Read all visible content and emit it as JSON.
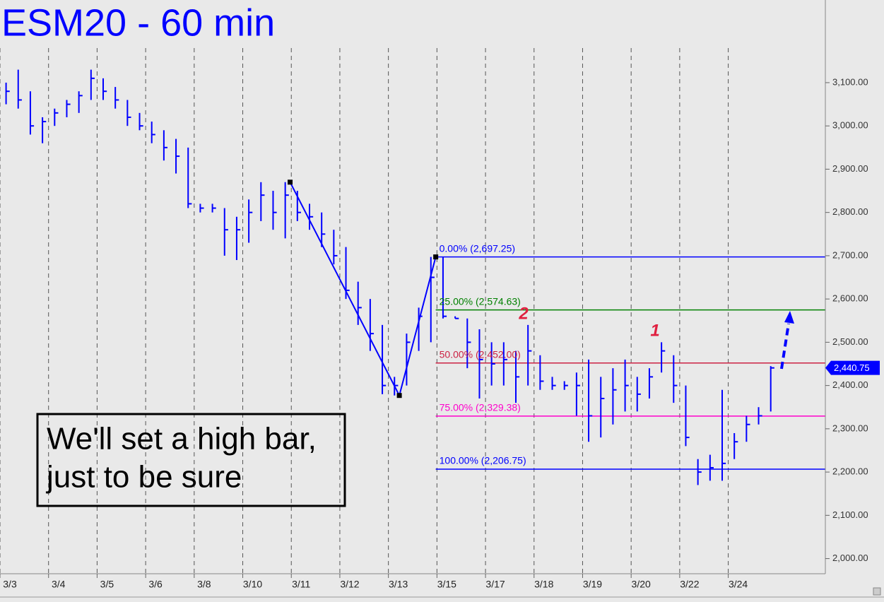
{
  "chart_data": {
    "type": "ohlc",
    "title": "ESM20 - 60 min",
    "color": "#0000ff",
    "high": [
      3100,
      3130,
      3080,
      3020,
      3040,
      3060,
      3080,
      3130,
      3110,
      3090,
      3060,
      3030,
      3010,
      2990,
      2970,
      2950,
      2820,
      2820,
      2810,
      2790,
      2830,
      2870,
      2850,
      2870,
      2850,
      2820,
      2800,
      2760,
      2720,
      2640,
      2600,
      2540,
      2420,
      2520,
      2580,
      2697.25,
      2697.25,
      2560,
      2555,
      2530,
      2500,
      2500,
      2480,
      2540,
      2470,
      2420,
      2410,
      2430,
      2460,
      2420,
      2440,
      2460,
      2420,
      2440,
      2500,
      2470,
      2400,
      2230,
      2240,
      2390,
      2290,
      2330,
      2350,
      2445
    ],
    "low": [
      3050,
      3040,
      2980,
      2960,
      3000,
      3020,
      3030,
      3060,
      3060,
      3040,
      3000,
      2990,
      2960,
      2920,
      2890,
      2810,
      2800,
      2800,
      2700,
      2690,
      2730,
      2780,
      2760,
      2740,
      2780,
      2760,
      2720,
      2680,
      2600,
      2540,
      2480,
      2380,
      2377,
      2400,
      2480,
      2500,
      2555,
      2555,
      2440,
      2370,
      2400,
      2400,
      2360,
      2400,
      2390,
      2390,
      2390,
      2330,
      2270,
      2280,
      2310,
      2340,
      2340,
      2370,
      2430,
      2360,
      2260,
      2170,
      2180,
      2180,
      2230,
      2270,
      2310,
      2340
    ],
    "close": [
      3080,
      3060,
      3000,
      3010,
      3030,
      3050,
      3070,
      3110,
      3080,
      3060,
      3020,
      3000,
      2980,
      2950,
      2930,
      2820,
      2810,
      2810,
      2760,
      2760,
      2800,
      2840,
      2800,
      2840,
      2800,
      2790,
      2750,
      2700,
      2620,
      2580,
      2520,
      2400,
      2400,
      2500,
      2560,
      2650,
      2560,
      2555,
      2500,
      2460,
      2450,
      2460,
      2420,
      2480,
      2410,
      2400,
      2400,
      2400,
      2330,
      2370,
      2390,
      2400,
      2380,
      2420,
      2480,
      2400,
      2280,
      2200,
      2210,
      2220,
      2270,
      2310,
      2330,
      2440.75
    ],
    "xlim": [
      0,
      68
    ],
    "xticks": [
      {
        "value": 0,
        "label": "3/3"
      },
      {
        "value": 4,
        "label": "3/4"
      },
      {
        "value": 8,
        "label": "3/5"
      },
      {
        "value": 12,
        "label": "3/6"
      },
      {
        "value": 16,
        "label": "3/8"
      },
      {
        "value": 20,
        "label": "3/10"
      },
      {
        "value": 24,
        "label": "3/11"
      },
      {
        "value": 28,
        "label": "3/12"
      },
      {
        "value": 32,
        "label": "3/13"
      },
      {
        "value": 36,
        "label": "3/15"
      },
      {
        "value": 40,
        "label": "3/17"
      },
      {
        "value": 44,
        "label": "3/18"
      },
      {
        "value": 48,
        "label": "3/19"
      },
      {
        "value": 52,
        "label": "3/20"
      },
      {
        "value": 56,
        "label": "3/22"
      },
      {
        "value": 60,
        "label": "3/24"
      }
    ],
    "ylim": [
      1965,
      3291
    ],
    "yticks": [
      {
        "value": 2000,
        "label": "2,000.00"
      },
      {
        "value": 2100,
        "label": "2,100.00"
      },
      {
        "value": 2200,
        "label": "2,200.00"
      },
      {
        "value": 2300,
        "label": "2,300.00"
      },
      {
        "value": 2400,
        "label": "2,400.00"
      },
      {
        "value": 2500,
        "label": "2,500.00"
      },
      {
        "value": 2600,
        "label": "2,600.00"
      },
      {
        "value": 2700,
        "label": "2,700.00"
      },
      {
        "value": 2800,
        "label": "2,800.00"
      },
      {
        "value": 2900,
        "label": "2,900.00"
      },
      {
        "value": 3000,
        "label": "3,000.00"
      },
      {
        "value": 3100,
        "label": "3,100.00"
      }
    ],
    "pattern": {
      "x": [
        23.9,
        32.9,
        35.9
      ],
      "values": [
        2870,
        2377,
        2697.25
      ]
    },
    "fib_levels": [
      {
        "value": 2697.25,
        "label": "0.00% (2,697.25)",
        "color": "#0000ff"
      },
      {
        "value": 2574.63,
        "label": "25.00% (2,574.63)",
        "color": "#008000"
      },
      {
        "value": 2452.0,
        "label": "50.00% (2,452.00)",
        "color": "#cc2244"
      },
      {
        "value": 2329.38,
        "label": "75.00% (2,329.38)",
        "color": "#ff00cc"
      },
      {
        "value": 2206.75,
        "label": "100.00% (2,206.75)",
        "color": "#0000ff"
      }
    ],
    "last_price": {
      "value": 2440.75,
      "label": "2,440.75"
    },
    "annotations": [
      "2",
      "1"
    ],
    "callout": [
      "We'll set a high bar,",
      "just to be sure"
    ]
  }
}
